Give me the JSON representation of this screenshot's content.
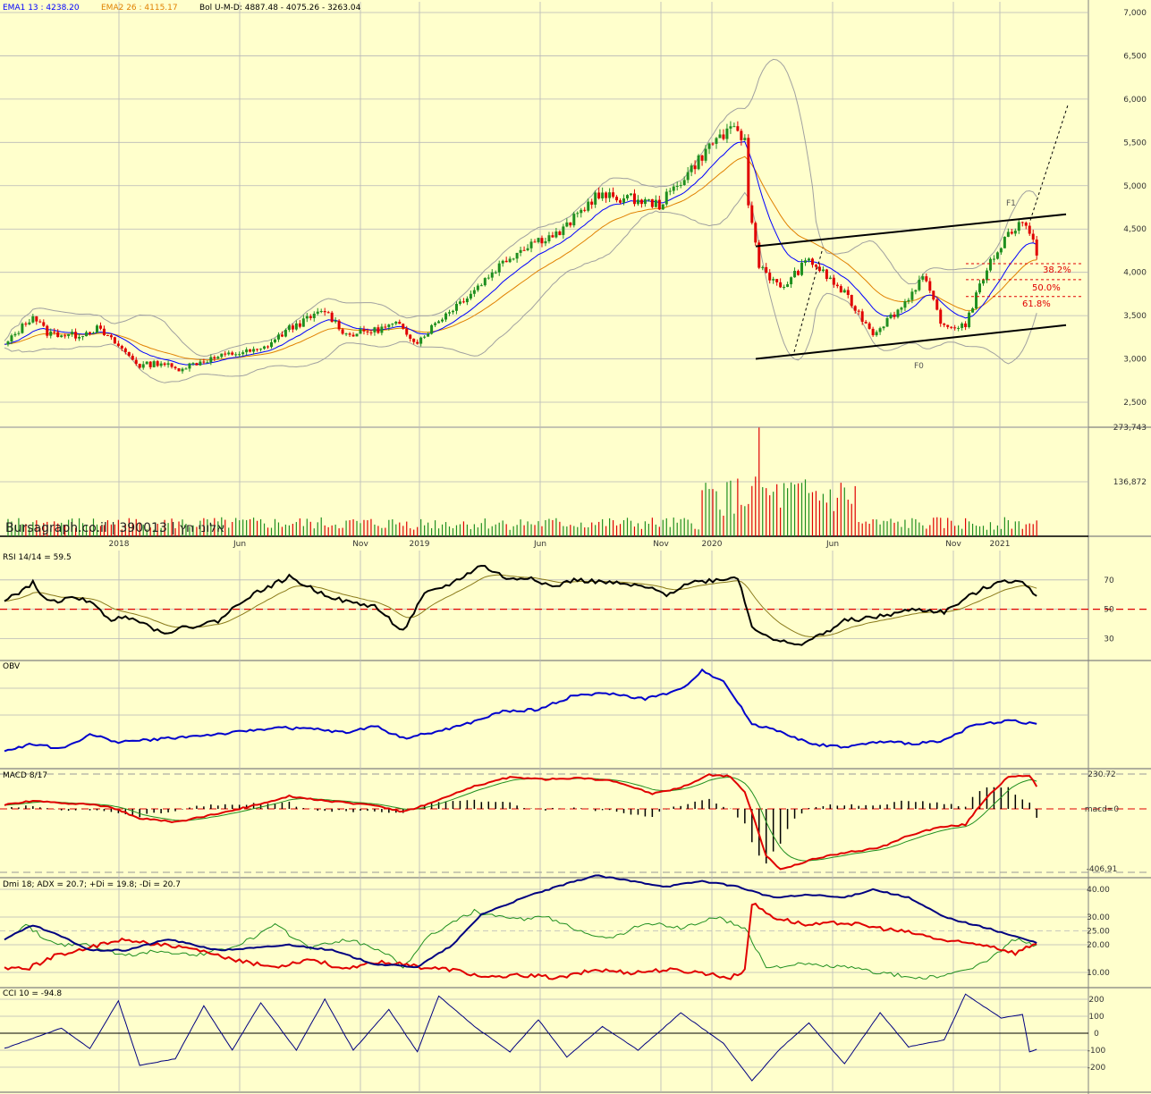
{
  "watermark": "Bursagraph.co.il | 390013 | אלוני חץ",
  "colors": {
    "background": "#ffffcc",
    "grid": "#b8b8b8",
    "up_candle": "#1f8f1f",
    "down_candle": "#e00000",
    "ema1": "#0000ff",
    "ema2": "#e08000",
    "bollinger": "#a0a0a0",
    "rsi": "#000000",
    "rsi_avg": "#8a7a1a",
    "obv": "#0000cc",
    "macd": "#e00000",
    "signal": "#1f8f1f",
    "adx": "#000080",
    "plus_di": "#1f8f1f",
    "minus_di": "#e00000",
    "cci": "#000080",
    "fib": "#e00000"
  },
  "time_axis": {
    "labels": [
      "2018",
      "Jun",
      "Nov",
      "2019",
      "Jun",
      "Nov",
      "2020",
      "Jun",
      "Nov",
      "2021"
    ]
  },
  "chart_data": [
    {
      "type": "candlestick",
      "panel": "price",
      "legend": {
        "ema1": "EMA1 13 : 4238.20",
        "ema2": "EMA2 26 : 4115.17",
        "bollinger": "Bol U-M-D: 4887.48 - 4075.26 - 3263.04"
      },
      "y_ticks": [
        "7,000",
        "6,500",
        "6,000",
        "5,500",
        "5,000",
        "4,500",
        "4,000",
        "3,500",
        "3,000",
        "2,500"
      ],
      "ylim": [
        2500,
        7000
      ],
      "anchors": [
        [
          0,
          3150
        ],
        [
          6,
          3420
        ],
        [
          8,
          3500
        ],
        [
          12,
          3300
        ],
        [
          20,
          3270
        ],
        [
          26,
          3350
        ],
        [
          32,
          3150
        ],
        [
          38,
          2920
        ],
        [
          44,
          2960
        ],
        [
          48,
          2880
        ],
        [
          56,
          2980
        ],
        [
          64,
          3060
        ],
        [
          72,
          3100
        ],
        [
          80,
          3350
        ],
        [
          90,
          3560
        ],
        [
          96,
          3280
        ],
        [
          104,
          3330
        ],
        [
          110,
          3400
        ],
        [
          116,
          3200
        ],
        [
          122,
          3450
        ],
        [
          132,
          3800
        ],
        [
          140,
          4120
        ],
        [
          148,
          4350
        ],
        [
          156,
          4450
        ],
        [
          166,
          4880
        ],
        [
          176,
          4850
        ],
        [
          184,
          4780
        ],
        [
          192,
          5150
        ],
        [
          200,
          5550
        ],
        [
          206,
          5650
        ],
        [
          208,
          5500
        ],
        [
          209,
          4800
        ],
        [
          212,
          4100
        ],
        [
          218,
          3800
        ],
        [
          226,
          4150
        ],
        [
          236,
          3750
        ],
        [
          244,
          3300
        ],
        [
          252,
          3600
        ],
        [
          258,
          3950
        ],
        [
          264,
          3350
        ],
        [
          270,
          3400
        ],
        [
          276,
          4050
        ],
        [
          282,
          4450
        ],
        [
          286,
          4600
        ],
        [
          290,
          4238
        ]
      ],
      "notes": {
        "fib": [
          "38.2%",
          "50.0%",
          "61.8%"
        ],
        "labels": [
          "F0",
          "F1"
        ]
      }
    },
    {
      "type": "bar",
      "panel": "volume",
      "y_ticks": [
        "273,743",
        "136,872"
      ],
      "ylim": [
        0,
        273743
      ]
    },
    {
      "type": "line",
      "panel": "rsi",
      "title": "RSI 14/14 = 59.5",
      "y_ticks": [
        "70",
        "50",
        "30"
      ],
      "ylim": [
        15,
        90
      ],
      "reference": 50,
      "anchors": [
        [
          0,
          55
        ],
        [
          8,
          68
        ],
        [
          12,
          55
        ],
        [
          22,
          58
        ],
        [
          30,
          43
        ],
        [
          36,
          45
        ],
        [
          44,
          34
        ],
        [
          52,
          38
        ],
        [
          60,
          42
        ],
        [
          68,
          58
        ],
        [
          80,
          72
        ],
        [
          88,
          62
        ],
        [
          96,
          55
        ],
        [
          104,
          52
        ],
        [
          112,
          35
        ],
        [
          118,
          60
        ],
        [
          126,
          68
        ],
        [
          134,
          80
        ],
        [
          142,
          70
        ],
        [
          148,
          72
        ],
        [
          154,
          65
        ],
        [
          160,
          70
        ],
        [
          170,
          68
        ],
        [
          180,
          65
        ],
        [
          186,
          60
        ],
        [
          192,
          68
        ],
        [
          200,
          70
        ],
        [
          206,
          72
        ],
        [
          210,
          38
        ],
        [
          216,
          30
        ],
        [
          222,
          25
        ],
        [
          230,
          33
        ],
        [
          236,
          42
        ],
        [
          246,
          45
        ],
        [
          256,
          50
        ],
        [
          264,
          48
        ],
        [
          272,
          60
        ],
        [
          280,
          70
        ],
        [
          286,
          68
        ],
        [
          290,
          60
        ]
      ]
    },
    {
      "type": "line",
      "panel": "obv",
      "title": "OBV",
      "anchors": [
        [
          0,
          10
        ],
        [
          8,
          18
        ],
        [
          16,
          12
        ],
        [
          24,
          28
        ],
        [
          32,
          20
        ],
        [
          40,
          22
        ],
        [
          52,
          26
        ],
        [
          64,
          30
        ],
        [
          76,
          36
        ],
        [
          88,
          34
        ],
        [
          96,
          30
        ],
        [
          104,
          38
        ],
        [
          112,
          24
        ],
        [
          120,
          30
        ],
        [
          130,
          40
        ],
        [
          140,
          54
        ],
        [
          150,
          56
        ],
        [
          160,
          72
        ],
        [
          170,
          74
        ],
        [
          180,
          68
        ],
        [
          190,
          78
        ],
        [
          196,
          100
        ],
        [
          202,
          88
        ],
        [
          210,
          40
        ],
        [
          218,
          32
        ],
        [
          226,
          18
        ],
        [
          236,
          14
        ],
        [
          246,
          20
        ],
        [
          256,
          18
        ],
        [
          264,
          22
        ],
        [
          272,
          38
        ],
        [
          282,
          44
        ],
        [
          290,
          40
        ]
      ]
    },
    {
      "type": "line",
      "panel": "macd",
      "title": "MACD 8/17",
      "y_ticks": [
        "230.72",
        "macd=0",
        "-406.91"
      ],
      "ylim": [
        -406.91,
        230.72
      ],
      "reference": 0,
      "anchors": [
        [
          0,
          25
        ],
        [
          8,
          55
        ],
        [
          14,
          40
        ],
        [
          22,
          35
        ],
        [
          30,
          10
        ],
        [
          38,
          -60
        ],
        [
          48,
          -85
        ],
        [
          58,
          -40
        ],
        [
          68,
          10
        ],
        [
          80,
          85
        ],
        [
          88,
          60
        ],
        [
          96,
          40
        ],
        [
          104,
          25
        ],
        [
          112,
          -20
        ],
        [
          120,
          40
        ],
        [
          132,
          150
        ],
        [
          142,
          210
        ],
        [
          152,
          195
        ],
        [
          162,
          205
        ],
        [
          172,
          180
        ],
        [
          182,
          100
        ],
        [
          190,
          140
        ],
        [
          198,
          225
        ],
        [
          204,
          215
        ],
        [
          208,
          110
        ],
        [
          214,
          -300
        ],
        [
          218,
          -390
        ],
        [
          226,
          -330
        ],
        [
          236,
          -280
        ],
        [
          246,
          -250
        ],
        [
          254,
          -170
        ],
        [
          262,
          -120
        ],
        [
          270,
          -100
        ],
        [
          276,
          80
        ],
        [
          282,
          210
        ],
        [
          288,
          220
        ],
        [
          290,
          150
        ]
      ]
    },
    {
      "type": "line",
      "panel": "dmi",
      "title": "Dmi 18; ADX = 20.7; +Di = 19.8; -Di = 20.7",
      "y_ticks": [
        "40.00",
        "30.00",
        "25.00",
        "20.00",
        "10.00"
      ],
      "ylim": [
        5,
        45
      ],
      "reference": 25,
      "series": [
        {
          "name": "ADX",
          "anchors": [
            [
              0,
              22
            ],
            [
              8,
              27
            ],
            [
              16,
              23
            ],
            [
              24,
              18
            ],
            [
              34,
              18
            ],
            [
              46,
              22
            ],
            [
              60,
              18
            ],
            [
              72,
              19
            ],
            [
              80,
              20
            ],
            [
              92,
              18
            ],
            [
              104,
              13
            ],
            [
              116,
              12
            ],
            [
              126,
              20
            ],
            [
              134,
              31
            ],
            [
              148,
              38
            ],
            [
              158,
              42
            ],
            [
              166,
              45
            ],
            [
              176,
              43
            ],
            [
              186,
              41
            ],
            [
              196,
              43
            ],
            [
              206,
              41
            ],
            [
              216,
              37
            ],
            [
              226,
              38
            ],
            [
              236,
              37
            ],
            [
              244,
              40
            ],
            [
              254,
              37
            ],
            [
              264,
              30
            ],
            [
              276,
              26
            ],
            [
              290,
              20.7
            ]
          ]
        },
        {
          "name": "+Di",
          "anchors": [
            [
              0,
              22
            ],
            [
              6,
              27
            ],
            [
              14,
              20
            ],
            [
              24,
              20
            ],
            [
              34,
              16
            ],
            [
              44,
              18
            ],
            [
              54,
              16
            ],
            [
              66,
              20
            ],
            [
              76,
              27
            ],
            [
              86,
              19
            ],
            [
              96,
              22
            ],
            [
              106,
              18
            ],
            [
              112,
              12
            ],
            [
              120,
              24
            ],
            [
              132,
              32
            ],
            [
              142,
              29
            ],
            [
              152,
              30
            ],
            [
              160,
              26
            ],
            [
              170,
              22
            ],
            [
              180,
              28
            ],
            [
              190,
              26
            ],
            [
              200,
              30
            ],
            [
              208,
              26
            ],
            [
              214,
              12
            ],
            [
              224,
              13
            ],
            [
              236,
              12
            ],
            [
              246,
              10
            ],
            [
              256,
              8
            ],
            [
              266,
              9
            ],
            [
              276,
              14
            ],
            [
              284,
              22
            ],
            [
              290,
              19.8
            ]
          ]
        },
        {
          "name": "-Di",
          "anchors": [
            [
              0,
              12
            ],
            [
              6,
              11
            ],
            [
              14,
              16
            ],
            [
              24,
              19
            ],
            [
              34,
              22
            ],
            [
              44,
              20
            ],
            [
              54,
              18
            ],
            [
              66,
              14
            ],
            [
              76,
              12
            ],
            [
              86,
              15
            ],
            [
              96,
              11
            ],
            [
              106,
              14
            ],
            [
              116,
              12
            ],
            [
              126,
              11
            ],
            [
              136,
              8
            ],
            [
              146,
              9
            ],
            [
              156,
              8
            ],
            [
              166,
              11
            ],
            [
              176,
              10
            ],
            [
              186,
              11
            ],
            [
              196,
              10
            ],
            [
              204,
              8
            ],
            [
              208,
              11
            ],
            [
              210,
              35
            ],
            [
              216,
              30
            ],
            [
              226,
              27
            ],
            [
              236,
              28
            ],
            [
              246,
              26
            ],
            [
              256,
              24
            ],
            [
              266,
              21
            ],
            [
              276,
              20
            ],
            [
              284,
              17
            ],
            [
              290,
              20.7
            ]
          ]
        }
      ]
    },
    {
      "type": "line",
      "panel": "cci",
      "title": "CCI 10 = -94.8",
      "y_ticks": [
        "200",
        "100",
        "0",
        "-100",
        "-200"
      ],
      "ylim": [
        -300,
        250
      ],
      "reference": 0,
      "anchors": [
        [
          0,
          -90
        ],
        [
          8,
          -30
        ],
        [
          16,
          30
        ],
        [
          24,
          -90
        ],
        [
          32,
          190
        ],
        [
          38,
          -190
        ],
        [
          48,
          -150
        ],
        [
          56,
          160
        ],
        [
          64,
          -100
        ],
        [
          72,
          180
        ],
        [
          82,
          -100
        ],
        [
          90,
          200
        ],
        [
          98,
          -100
        ],
        [
          108,
          140
        ],
        [
          116,
          -110
        ],
        [
          122,
          220
        ],
        [
          132,
          40
        ],
        [
          142,
          -110
        ],
        [
          150,
          80
        ],
        [
          158,
          -140
        ],
        [
          168,
          40
        ],
        [
          178,
          -100
        ],
        [
          190,
          120
        ],
        [
          202,
          -60
        ],
        [
          210,
          -280
        ],
        [
          218,
          -90
        ],
        [
          226,
          60
        ],
        [
          236,
          -180
        ],
        [
          246,
          120
        ],
        [
          254,
          -80
        ],
        [
          264,
          -40
        ],
        [
          270,
          230
        ],
        [
          280,
          90
        ],
        [
          286,
          110
        ],
        [
          288,
          -110
        ],
        [
          290,
          -94.8
        ]
      ]
    }
  ]
}
